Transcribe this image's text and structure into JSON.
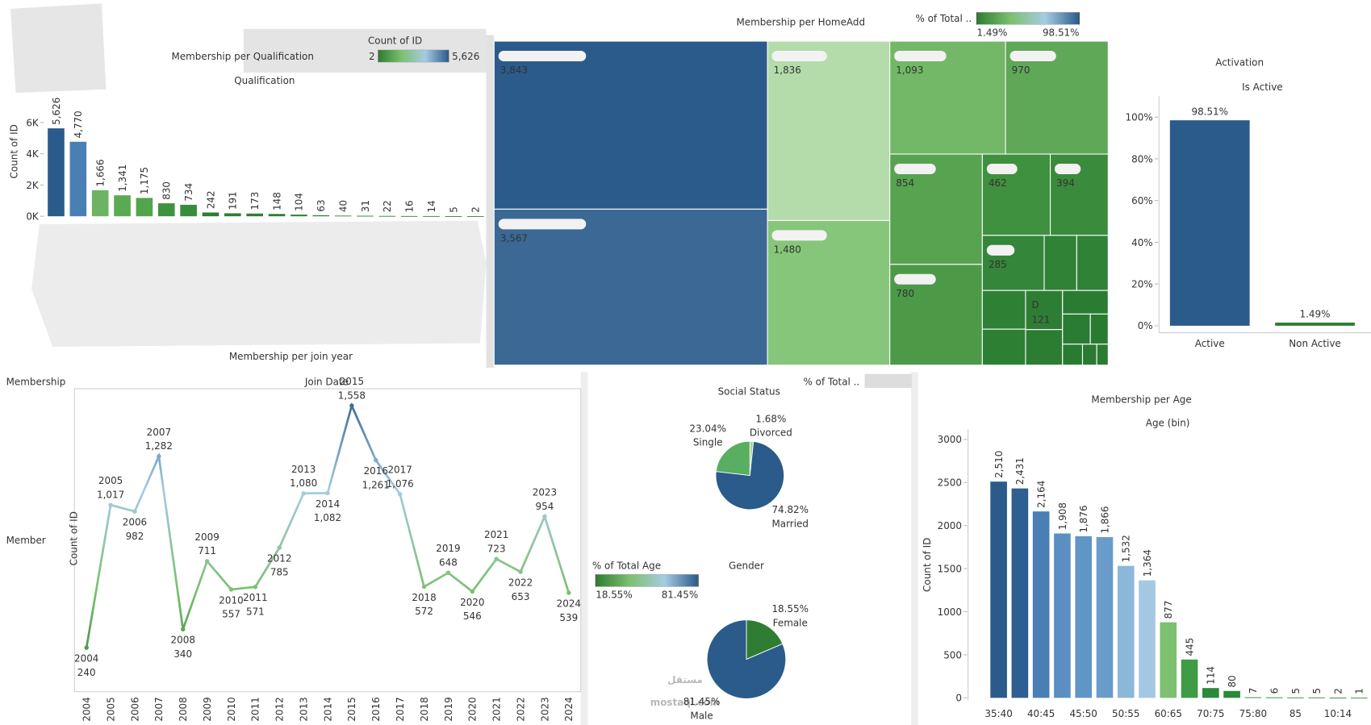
{
  "chart_data": [
    {
      "type": "bar",
      "title": "Membership per Qualification",
      "subtitle": "Qualification",
      "y_label": "Count of ID",
      "categories": [
        null,
        null,
        null,
        null,
        null,
        null,
        null,
        null,
        null,
        null,
        null,
        null,
        null,
        null,
        null,
        null,
        null,
        null,
        null,
        null
      ],
      "values": [
        5626,
        4770,
        1666,
        1341,
        1175,
        830,
        734,
        242,
        191,
        173,
        148,
        104,
        63,
        40,
        31,
        22,
        16,
        14,
        5,
        2
      ],
      "value_labels": [
        "5,626",
        "4,770",
        "1,666",
        "1,341",
        "1,175",
        "830",
        "734",
        "242",
        "191",
        "173",
        "148",
        "104",
        "63",
        "40",
        "31",
        "22",
        "16",
        "14",
        "5",
        "2"
      ],
      "colors": [
        "#2b5b8a",
        "#4a7fb5",
        "#6cb463",
        "#5aaa52",
        "#54a44d",
        "#3f923f",
        "#398c3b",
        "#2e7d32",
        "#2e7d32",
        "#2e7d32",
        "#2e7d32",
        "#2e7d32",
        "#2e7d32",
        "#2e7d32",
        "#2e7d32",
        "#2e7d32",
        "#2e7d32",
        "#2e7d32",
        "#2e7d32",
        "#2e7d32"
      ],
      "ylim": [
        0,
        6500
      ],
      "yticks": [
        {
          "value": 0,
          "label": "0K"
        },
        {
          "value": 2000,
          "label": "2K"
        },
        {
          "value": 4000,
          "label": "4K"
        },
        {
          "value": 6000,
          "label": "6K"
        }
      ],
      "legend": {
        "title": "Count of ID",
        "min": 2,
        "max": {
          "value": 5626,
          "label": "5,626"
        },
        "colors": [
          "#2e7d32",
          "#7cc070",
          "#a6cbe3",
          "#2b5b8a"
        ]
      }
    },
    {
      "type": "treemap",
      "title": "Membership per HomeAdd",
      "categories": [
        null,
        null,
        null,
        null,
        null,
        null,
        null,
        null,
        null,
        null,
        null,
        null,
        null,
        null,
        null,
        "D",
        null,
        null,
        null,
        null,
        null,
        null,
        null
      ],
      "values": [
        3843,
        3567,
        1836,
        1480,
        1093,
        970,
        854,
        780,
        462,
        394,
        285,
        150,
        145,
        140,
        130,
        121,
        110,
        90,
        70,
        45,
        35,
        25,
        20
      ],
      "value_labels": [
        "3,843",
        "3,567",
        "1,836",
        "1,480",
        "1,093",
        "970",
        "854",
        "780",
        "462",
        "394",
        "285",
        null,
        null,
        null,
        null,
        "121",
        null,
        null,
        null,
        null,
        null,
        null,
        null
      ],
      "colors": [
        "#2b5b8a",
        "#3b6895",
        "#b3dcaa",
        "#86c67a",
        "#72b866",
        "#5fa857",
        "#57a350",
        "#4c9a48",
        "#3f903f",
        "#3a8b3b",
        "#34863a",
        "#2f8236",
        "#2f8236",
        "#2e8035",
        "#2d7f34",
        "#2d7e34",
        "#2c7d33",
        "#2b7c33",
        "#2b7c33",
        "#2a7b32",
        "#2a7b32",
        "#2a7a32",
        "#2a7a32"
      ],
      "legend": {
        "title": "% of Total ..",
        "min": {
          "value": 1.49,
          "label": "1.49%"
        },
        "max": {
          "value": 98.51,
          "label": "98.51%"
        },
        "colors": [
          "#2e7d32",
          "#7cc070",
          "#a6cbe3",
          "#2b5b8a"
        ]
      }
    },
    {
      "type": "bar",
      "title": "Activation",
      "subtitle": "Is Active",
      "categories": [
        "Active",
        "Non Active"
      ],
      "values": [
        98.51,
        1.49
      ],
      "value_labels": [
        "98.51%",
        "1.49%"
      ],
      "colors": [
        "#2b5b8a",
        "#2e7d32"
      ],
      "ylim": [
        0,
        110
      ],
      "yticks": [
        {
          "value": 0,
          "label": "0%"
        },
        {
          "value": 20,
          "label": "20%"
        },
        {
          "value": 40,
          "label": "40%"
        },
        {
          "value": 60,
          "label": "60%"
        },
        {
          "value": 80,
          "label": "80%"
        },
        {
          "value": 100,
          "label": "100%"
        }
      ]
    },
    {
      "type": "line",
      "title": "Membership per join year",
      "header": "Membership",
      "subtitle": "Join Date",
      "row_label": "Member",
      "y_label": "Count of ID",
      "x": [
        2004,
        2005,
        2006,
        2007,
        2008,
        2009,
        2010,
        2011,
        2012,
        2013,
        2014,
        2015,
        2016,
        2017,
        2018,
        2019,
        2020,
        2021,
        2022,
        2023,
        2024
      ],
      "values": [
        240,
        1017,
        982,
        1282,
        340,
        711,
        557,
        571,
        785,
        1080,
        1082,
        1558,
        1261,
        1076,
        572,
        648,
        546,
        723,
        653,
        954,
        539
      ],
      "value_labels": [
        "240",
        "1,017",
        "982",
        "1,282",
        "340",
        "711",
        "557",
        "571",
        "785",
        "1,080",
        "1,082",
        "1,558",
        "1,261",
        "1,076",
        "572",
        "648",
        "546",
        "723",
        "653",
        "954",
        "539"
      ],
      "xlim": [
        2003.5,
        2024.5
      ],
      "ylim": [
        0,
        1650
      ],
      "color_scale": [
        "#2e7d32",
        "#7cc070",
        "#a6cbe3",
        "#2b5b8a"
      ]
    },
    {
      "type": "pie",
      "title": "Social Status",
      "legend_title": "% of Total ..",
      "categories": [
        "Divorced",
        "Married",
        "Single"
      ],
      "values": [
        1.68,
        74.82,
        23.04
      ],
      "value_labels": [
        "1.68%",
        "74.82%",
        "23.04%"
      ],
      "colors": [
        "#a8d5a0",
        "#2b5b8a",
        "#5aae61"
      ]
    },
    {
      "type": "pie",
      "title": "Gender",
      "legend": {
        "title": "% of Total Age",
        "min": {
          "value": 18.55,
          "label": "18.55%"
        },
        "max": {
          "value": 81.45,
          "label": "81.45%"
        },
        "colors": [
          "#2e7d32",
          "#7cc070",
          "#a6cbe3",
          "#2b5b8a"
        ]
      },
      "categories": [
        "Female",
        "Male"
      ],
      "values": [
        18.55,
        81.45
      ],
      "value_labels": [
        "18.55%",
        "81.45%"
      ],
      "colors": [
        "#2e7d32",
        "#2b5b8a"
      ]
    },
    {
      "type": "bar",
      "title": "Membership per Age",
      "subtitle": "Age (bin)",
      "y_label": "Count of ID",
      "categories": [
        "35:40",
        null,
        "40:45",
        null,
        "45:50",
        null,
        "50:55",
        null,
        "60:65",
        null,
        "70:75",
        null,
        "75:80",
        null,
        "85",
        null,
        "10:14",
        null
      ],
      "values": [
        2510,
        2431,
        2164,
        1908,
        1876,
        1866,
        1532,
        1364,
        877,
        445,
        114,
        80,
        7,
        6,
        5,
        5,
        2,
        1
      ],
      "value_labels": [
        "2,510",
        "2,431",
        "2,164",
        "1,908",
        "1,876",
        "1,866",
        "1,532",
        "1,364",
        "877",
        "445",
        "114",
        "80",
        "7",
        "6",
        "5",
        "5",
        "2",
        "1"
      ],
      "colors": [
        "#2b5b8a",
        "#2f5f90",
        "#4a7fb5",
        "#5b8fc2",
        "#6096c6",
        "#6a9ccb",
        "#8bb7d9",
        "#a5c8e2",
        "#7cc070",
        "#3f9b45",
        "#2a8a3a",
        "#2a8a3a",
        "#2e7d32",
        "#2e7d32",
        "#2e7d32",
        "#2e7d32",
        "#2e7d32",
        "#2e7d32"
      ],
      "ylim": [
        0,
        3100
      ],
      "yticks": [
        0,
        500,
        1000,
        1500,
        2000,
        2500,
        3000
      ]
    }
  ],
  "watermark": {
    "arabic": "مستقل",
    "latin": "mostaql.com"
  }
}
